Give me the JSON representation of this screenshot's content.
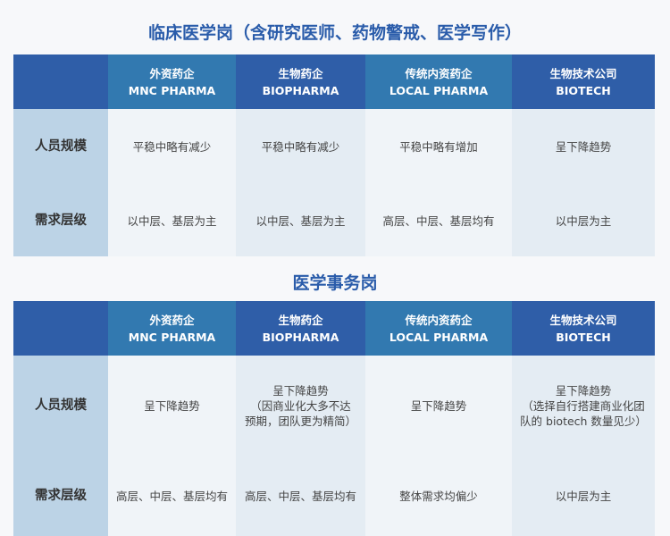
{
  "columns": [
    {
      "cn": "外资药企",
      "en": "MNC PHARMA"
    },
    {
      "cn": "生物药企",
      "en": "BIOPHARMA"
    },
    {
      "cn": "传统内资药企",
      "en": "LOCAL PHARMA"
    },
    {
      "cn": "生物技术公司",
      "en": "BIOTECH"
    }
  ],
  "tables": [
    {
      "title": "临床医学岗（含研究医师、药物警戒、医学写作）",
      "rows": [
        {
          "label": "人员规模",
          "cells": [
            "平稳中略有减少",
            "平稳中略有减少",
            "平稳中略有增加",
            "呈下降趋势"
          ]
        },
        {
          "label": "需求层级",
          "cells": [
            "以中层、基层为主",
            "以中层、基层为主",
            "高层、中层、基层均有",
            "以中层为主"
          ]
        }
      ]
    },
    {
      "title": "医学事务岗",
      "rows": [
        {
          "label": "人员规模",
          "cells": [
            "呈下降趋势",
            "呈下降趋势\n（因商业化大多不达\n预期，团队更为精简）",
            "呈下降趋势",
            "呈下降趋势\n（选择自行搭建商业化团\n队的 biotech 数量见少）"
          ]
        },
        {
          "label": "需求层级",
          "cells": [
            "高层、中层、基层均有",
            "高层、中层、基层均有",
            "整体需求均偏少",
            "以中层为主"
          ]
        }
      ]
    }
  ],
  "colors": {
    "title": "#2a5caa",
    "header_dark": "#2f5ea8",
    "header_light": "#3279b0",
    "label_col": "#bcd3e6"
  }
}
